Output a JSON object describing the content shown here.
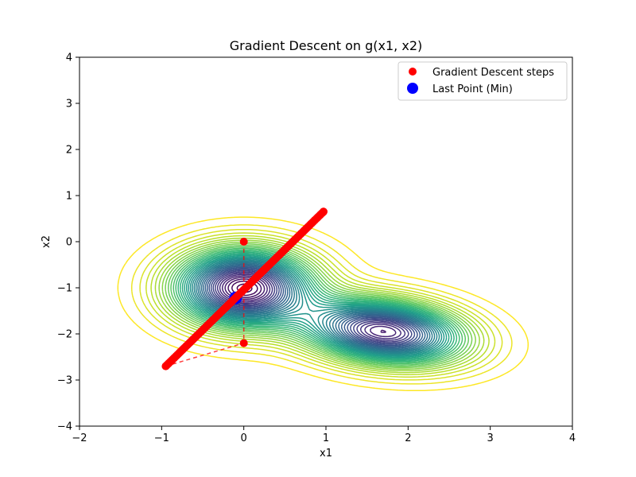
{
  "chart_data": {
    "type": "scatter",
    "title": "Gradient Descent on g(x1, x2)",
    "xlabel": "x1",
    "ylabel": "x2",
    "xlim": [
      -2,
      4
    ],
    "ylim": [
      -4,
      4
    ],
    "xticks": [
      "−2",
      "−1",
      "0",
      "1",
      "2",
      "3",
      "4"
    ],
    "yticks": [
      "−4",
      "−3",
      "−2",
      "−1",
      "0",
      "1",
      "2",
      "3",
      "4"
    ],
    "grid": false,
    "legend_position": "top-right",
    "contours": {
      "colormap": "viridis",
      "minima": [
        {
          "x": 0.0,
          "y": -1.0
        },
        {
          "x": 1.7,
          "y": -1.95
        }
      ]
    },
    "series": [
      {
        "name": "Gradient Descent steps",
        "color": "#ff0000",
        "marker": "circle",
        "path_style": "dashed",
        "points": [
          {
            "x": 0.0,
            "y": 0.0
          },
          {
            "x": 0.0,
            "y": -2.2
          },
          {
            "x": -0.95,
            "y": -2.7
          },
          {
            "x": 0.97,
            "y": 0.65
          }
        ],
        "band": {
          "from": {
            "x": -0.95,
            "y": -2.7
          },
          "to": {
            "x": 0.97,
            "y": 0.65
          },
          "count": 150
        }
      },
      {
        "name": "Last Point (Min)",
        "color": "#0000ff",
        "marker": "circle",
        "points": [
          {
            "x": -0.1,
            "y": -1.22
          }
        ]
      }
    ]
  }
}
